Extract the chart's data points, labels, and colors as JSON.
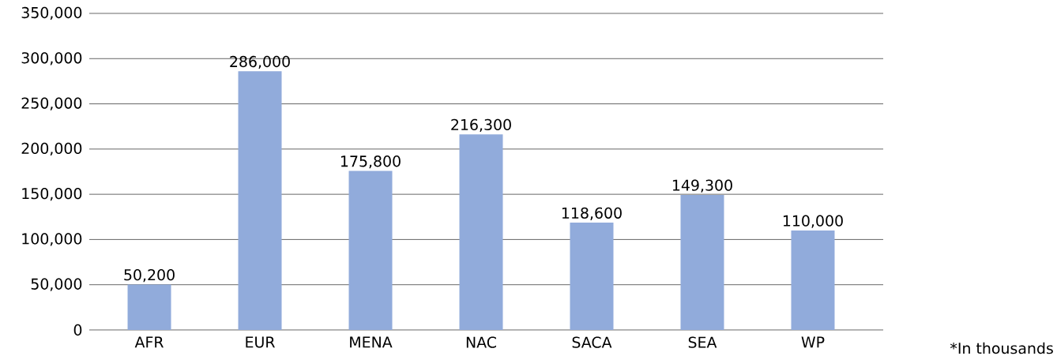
{
  "chart_data": {
    "type": "bar",
    "categories": [
      "AFR",
      "EUR",
      "MENA",
      "NAC",
      "SACA",
      "SEA",
      "WP"
    ],
    "values": [
      50200,
      286000,
      175800,
      216300,
      118600,
      149300,
      110000
    ],
    "value_labels": [
      "50,200",
      "286,000",
      "175,800",
      "216,300",
      "118,600",
      "149,300",
      "110,000"
    ],
    "color": "#91abdb",
    "ylim": [
      0,
      350000
    ],
    "yticks": [
      0,
      {
        "value": 50000,
        "label": "50,000"
      },
      {
        "value": 100000,
        "label": "100,000"
      },
      {
        "value": 150000,
        "label": "150,000"
      },
      {
        "value": 200000,
        "label": "200,000"
      },
      {
        "value": 250000,
        "label": "250,000"
      },
      {
        "value": 300000,
        "label": "300,000"
      },
      {
        "value": 350000,
        "label": "350,000"
      }
    ],
    "grid": "y",
    "annotations": [
      "*In thousands"
    ]
  }
}
